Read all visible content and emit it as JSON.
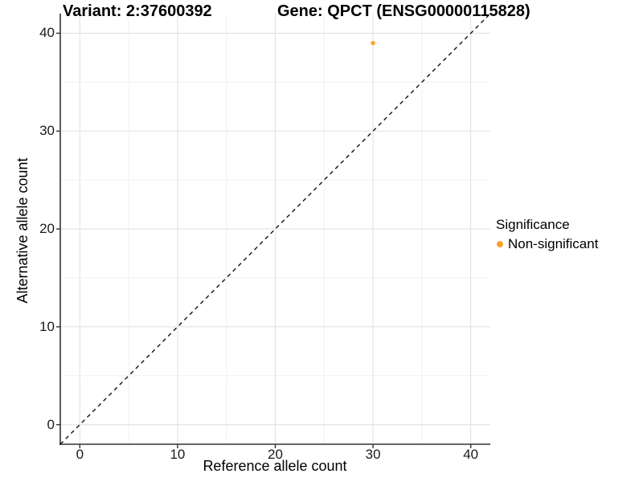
{
  "titles": {
    "variant": "Variant: 2:37600392",
    "gene": "Gene: QPCT (ENSG00000115828)"
  },
  "legend": {
    "title": "Significance",
    "items": [
      {
        "label": "Non-significant",
        "color": "#F9A02C"
      }
    ]
  },
  "colors": {
    "background": "#ffffff",
    "axis_line": "#333333",
    "grid_major": "#E4E4E4",
    "grid_minor": "#F1F1F1",
    "dashed_line": "#111111",
    "point": "#F9A02C",
    "tick_mark": "#333333"
  },
  "chart_data": {
    "type": "scatter",
    "title": "Variant: 2:37600392   Gene: QPCT (ENSG00000115828)",
    "xlabel": "Reference allele count",
    "ylabel": "Alternative allele count",
    "xlim": [
      -2,
      42
    ],
    "ylim": [
      -2,
      42
    ],
    "x_ticks": [
      0,
      10,
      20,
      30,
      40
    ],
    "y_ticks": [
      0,
      10,
      20,
      30,
      40
    ],
    "x_minor_ticks": [
      5,
      15,
      25,
      35
    ],
    "y_minor_ticks": [
      5,
      15,
      25,
      35
    ],
    "grid": true,
    "legend_position": "right",
    "series": [
      {
        "name": "Non-significant",
        "color": "#F9A02C",
        "points": [
          {
            "x": 30,
            "y": 39
          }
        ]
      }
    ],
    "reference_line": {
      "kind": "identity",
      "style": "dashed",
      "from": [
        -2,
        -2
      ],
      "to": [
        42,
        42
      ]
    }
  }
}
